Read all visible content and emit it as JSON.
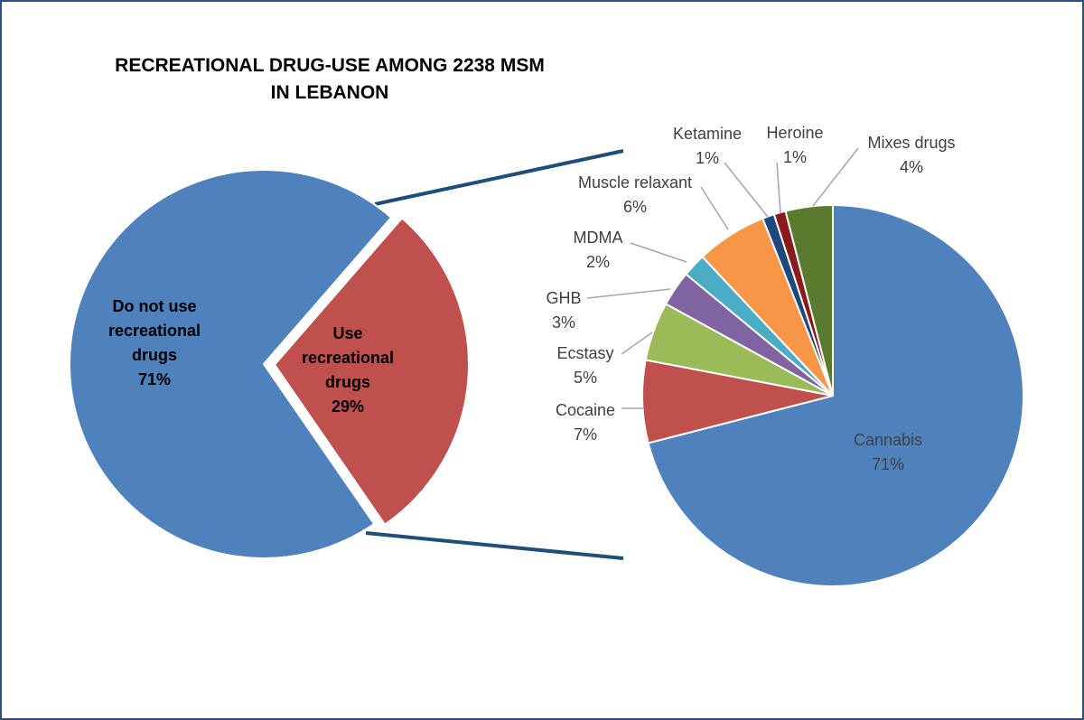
{
  "chart_data": [
    {
      "type": "pie",
      "title_lines": [
        "RECREATIONAL DRUG-USE AMONG 2238 MSM",
        "IN LEBANON"
      ],
      "slices": [
        {
          "label_lines": [
            "Do not use",
            "recreational",
            "drugs"
          ],
          "value": 71,
          "value_label": "71%",
          "color": "#4f81bd"
        },
        {
          "label_lines": [
            "Use",
            "recreational",
            "drugs"
          ],
          "value": 29,
          "value_label": "29%",
          "color": "#c0504d",
          "exploded": true
        }
      ]
    },
    {
      "type": "pie",
      "slices": [
        {
          "label": "Cannabis",
          "value": 71,
          "value_label": "71%",
          "color": "#4f81bd"
        },
        {
          "label": "Cocaine",
          "value": 7,
          "value_label": "7%",
          "color": "#c0504d"
        },
        {
          "label": "Ecstasy",
          "value": 5,
          "value_label": "5%",
          "color": "#9bbb59"
        },
        {
          "label": "GHB",
          "value": 3,
          "value_label": "3%",
          "color": "#8064a2"
        },
        {
          "label": "MDMA",
          "value": 2,
          "value_label": "2%",
          "color": "#4bacc6"
        },
        {
          "label": "Muscle relaxant",
          "value": 6,
          "value_label": "6%",
          "color": "#f79646"
        },
        {
          "label": "Ketamine",
          "value": 1,
          "value_label": "1%",
          "color": "#1f497d"
        },
        {
          "label": "Heroine",
          "value": 1,
          "value_label": "1%",
          "color": "#8b1a1a"
        },
        {
          "label": "Mixes drugs",
          "value": 4,
          "value_label": "4%",
          "color": "#5a7a2e"
        }
      ]
    }
  ],
  "colors": {
    "frame": "#2f4f7f",
    "connector": "#1f4e79",
    "leader": "#a6a6a6"
  }
}
